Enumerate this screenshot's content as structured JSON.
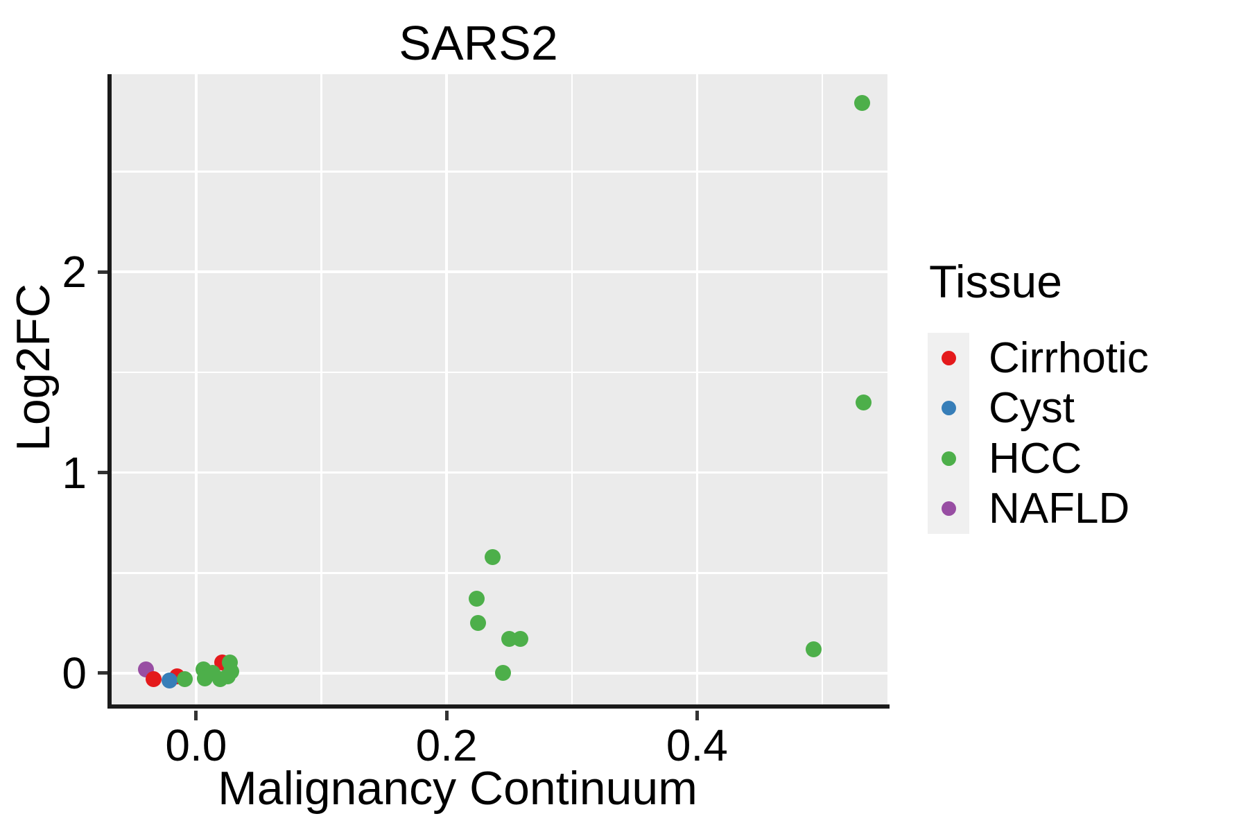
{
  "title": "SARS2",
  "axes": {
    "x": {
      "label": "Malignancy Continuum",
      "ticks": [
        0.0,
        0.2,
        0.4
      ],
      "tick_labels": [
        "0.0",
        "0.2",
        "0.4"
      ],
      "minor": [
        0.1,
        0.3,
        0.5
      ]
    },
    "y": {
      "label": "Log2FC",
      "ticks": [
        0,
        1,
        2
      ],
      "tick_labels": [
        "0",
        "1",
        "2"
      ],
      "minor": [
        0.5,
        1.5,
        2.5
      ]
    }
  },
  "legend": {
    "title": "Tissue",
    "items": [
      {
        "label": "Cirrhotic",
        "color": "#e41a1c"
      },
      {
        "label": "Cyst",
        "color": "#377eb8"
      },
      {
        "label": "HCC",
        "color": "#4daf4a"
      },
      {
        "label": "NAFLD",
        "color": "#984ea3"
      }
    ]
  },
  "colors": {
    "panel_bg": "#ebebeb",
    "grid": "#ffffff",
    "axis_line": "#1a1a1a",
    "tick": "#333333",
    "legend_key_bg": "#f0f0f0",
    "text": "#000000"
  },
  "chart_data": {
    "type": "scatter",
    "title": "SARS2",
    "xlabel": "Malignancy Continuum",
    "ylabel": "Log2FC",
    "xlim": [
      -0.068,
      0.552
    ],
    "ylim": [
      -0.159,
      2.985
    ],
    "grid": true,
    "legend_position": "right",
    "series": [
      {
        "name": "NAFLD",
        "color": "#984ea3",
        "points": [
          [
            -0.04,
            0.02
          ]
        ]
      },
      {
        "name": "Cirrhotic",
        "color": "#e41a1c",
        "points": [
          [
            -0.034,
            -0.03
          ],
          [
            -0.015,
            -0.015
          ],
          [
            0.021,
            0.055
          ]
        ]
      },
      {
        "name": "Cyst",
        "color": "#377eb8",
        "points": [
          [
            -0.021,
            -0.035
          ]
        ]
      },
      {
        "name": "HCC",
        "color": "#4daf4a",
        "points": [
          [
            -0.009,
            -0.03
          ],
          [
            0.006,
            0.02
          ],
          [
            0.007,
            -0.025
          ],
          [
            0.013,
            0.0
          ],
          [
            0.019,
            -0.03
          ],
          [
            0.025,
            -0.015
          ],
          [
            0.028,
            0.01
          ],
          [
            0.027,
            0.055
          ],
          [
            0.224,
            0.37
          ],
          [
            0.225,
            0.25
          ],
          [
            0.237,
            0.58
          ],
          [
            0.25,
            0.17
          ],
          [
            0.259,
            0.17
          ],
          [
            0.245,
            0.0
          ],
          [
            0.493,
            0.12
          ],
          [
            0.533,
            1.35
          ],
          [
            0.532,
            2.84
          ]
        ]
      }
    ]
  }
}
